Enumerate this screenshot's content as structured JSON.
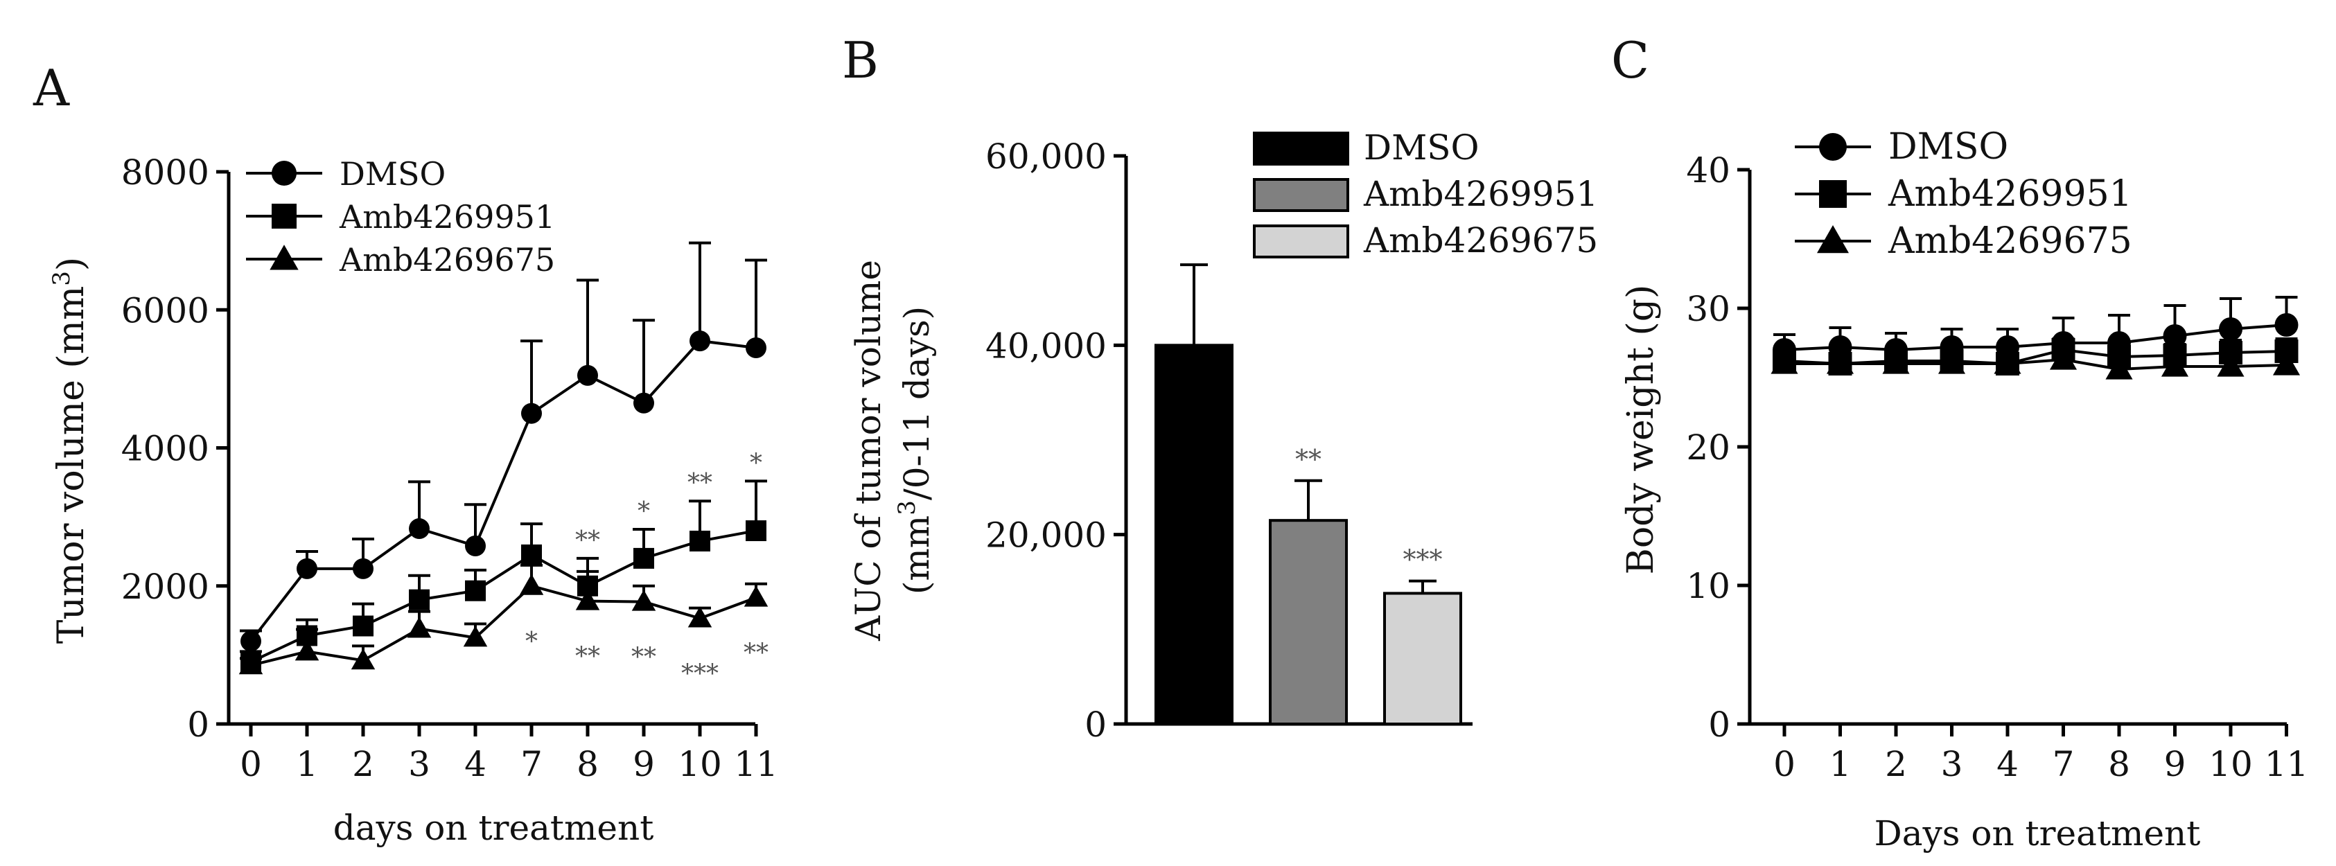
{
  "chart_data": [
    {
      "panel": "A",
      "type": "line",
      "ylabel": "Tumor volume (mm3)",
      "xlabel": "days on treatment",
      "categories": [
        "0",
        "1",
        "2",
        "3",
        "4",
        "7",
        "8",
        "9",
        "10",
        "11"
      ],
      "ylim": [
        0,
        8000
      ],
      "yticks": [
        "0",
        "2000",
        "4000",
        "6000",
        "8000"
      ],
      "legend": "top-left",
      "series": [
        {
          "name": "DMSO",
          "marker": "circle",
          "values": [
            1200,
            2250,
            2250,
            2830,
            2580,
            4500,
            5050,
            4650,
            5550,
            5450
          ],
          "error": [
            150,
            250,
            430,
            680,
            600,
            1050,
            1380,
            1200,
            1420,
            1270
          ]
        },
        {
          "name": "Amb4269951",
          "marker": "square",
          "values": [
            900,
            1280,
            1420,
            1800,
            1930,
            2450,
            2000,
            2400,
            2650,
            2800
          ],
          "error": [
            150,
            230,
            320,
            350,
            300,
            450,
            400,
            420,
            580,
            720
          ]
        },
        {
          "name": "Amb4269675",
          "marker": "triangle",
          "values": [
            850,
            1050,
            920,
            1380,
            1250,
            2000,
            1780,
            1770,
            1530,
            1830
          ],
          "error": [
            100,
            320,
            210,
            250,
            200,
            300,
            430,
            230,
            150,
            200
          ]
        }
      ],
      "annotations": [
        {
          "series": "Amb4269951",
          "x": "8",
          "text": "**",
          "side": "above"
        },
        {
          "series": "Amb4269951",
          "x": "9",
          "text": "*",
          "side": "above"
        },
        {
          "series": "Amb4269951",
          "x": "10",
          "text": "**",
          "side": "above"
        },
        {
          "series": "Amb4269951",
          "x": "11",
          "text": "*",
          "side": "above"
        },
        {
          "series": "Amb4269675",
          "x": "7",
          "text": "*",
          "side": "below"
        },
        {
          "series": "Amb4269675",
          "x": "8",
          "text": "**",
          "side": "below"
        },
        {
          "series": "Amb4269675",
          "x": "9",
          "text": "**",
          "side": "below"
        },
        {
          "series": "Amb4269675",
          "x": "10",
          "text": "***",
          "side": "below"
        },
        {
          "series": "Amb4269675",
          "x": "11",
          "text": "**",
          "side": "below"
        }
      ]
    },
    {
      "panel": "B",
      "type": "bar",
      "ylabel_line1": "AUC of tumor volume",
      "ylabel_line2": "(mm3/0-11 days)",
      "categories": [
        "DMSO",
        "Amb4269951",
        "Amb4269675"
      ],
      "values": [
        40000,
        21500,
        13800
      ],
      "error": [
        8500,
        4200,
        1300
      ],
      "colors": [
        "#000000",
        "#808080",
        "#d3d3d3"
      ],
      "ylim": [
        0,
        60000
      ],
      "yticks": [
        "0",
        "20,000",
        "40,000",
        "60,000"
      ],
      "annotations": [
        "",
        "**",
        "***"
      ],
      "legend": "top-right"
    },
    {
      "panel": "C",
      "type": "line",
      "ylabel": "Body weight (g)",
      "xlabel": "Days on treatment",
      "categories": [
        "0",
        "1",
        "2",
        "3",
        "4",
        "7",
        "8",
        "9",
        "10",
        "11"
      ],
      "ylim": [
        0,
        40
      ],
      "yticks": [
        "0",
        "10",
        "20",
        "30",
        "40"
      ],
      "legend": "top-left",
      "series": [
        {
          "name": "DMSO",
          "marker": "circle",
          "values": [
            27.0,
            27.2,
            27.0,
            27.2,
            27.2,
            27.5,
            27.5,
            28.0,
            28.5,
            28.8
          ],
          "error": [
            1.1,
            1.4,
            1.2,
            1.3,
            1.3,
            1.8,
            2.0,
            2.2,
            2.2,
            2.0
          ]
        },
        {
          "name": "Amb4269951",
          "marker": "square",
          "values": [
            26.2,
            26.0,
            26.2,
            26.2,
            26.0,
            27.0,
            26.5,
            26.6,
            26.8,
            26.9
          ],
          "error": [
            0.6,
            0.6,
            0.6,
            0.6,
            0.6,
            0.8,
            0.8,
            0.8,
            0.9,
            0.9
          ]
        },
        {
          "name": "Amb4269675",
          "marker": "triangle",
          "values": [
            26.0,
            26.0,
            26.0,
            26.0,
            26.0,
            26.3,
            25.6,
            25.8,
            25.8,
            25.9
          ],
          "error": [
            0.5,
            0.5,
            0.5,
            0.5,
            0.5,
            0.6,
            0.6,
            0.6,
            0.6,
            0.6
          ]
        }
      ]
    }
  ],
  "panel_labels": [
    "A",
    "B",
    "C"
  ],
  "series_names": [
    "DMSO",
    "Amb4269951",
    "Amb4269675"
  ]
}
